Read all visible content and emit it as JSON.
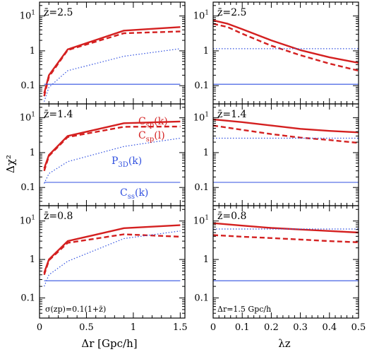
{
  "figure": {
    "ylabel": "Δχ²",
    "xlabel_left": "Δr [Gpc/h]",
    "xlabel_right": "λz",
    "note_left": "σ(zp)=0.1(1+z̄)",
    "note_right": "Δr=1.5 Gpc/h"
  },
  "labels": {
    "csp_k": "Csp(k)",
    "csp_l": "Csp(l)",
    "p3d_k": "P3D(k)",
    "css_k": "Css(k)"
  },
  "chart_data": [
    {
      "type": "line",
      "panel": "left-top",
      "annotation": "z̄=2.5",
      "xlabel": "",
      "ylabel": "Δχ²",
      "yscale": "log",
      "xlim": [
        0,
        1.55
      ],
      "ylim": [
        0.03,
        25
      ],
      "x_ticks": [
        "0",
        "0.5",
        "1",
        "1.5"
      ],
      "y_ticks": [
        "0.1",
        "1",
        "10¹"
      ],
      "series": [
        {
          "name": "Csp(k)",
          "color": "#d42020",
          "style": "solid-thick",
          "x": [
            0.05,
            0.1,
            0.3,
            0.9,
            1.5
          ],
          "values": [
            0.06,
            0.2,
            1.1,
            3.8,
            4.8
          ]
        },
        {
          "name": "Csp(l)",
          "color": "#d42020",
          "style": "dashed-thick",
          "x": [
            0.05,
            0.1,
            0.3,
            0.9,
            1.5
          ],
          "values": [
            0.05,
            0.18,
            1.05,
            3.2,
            3.6
          ]
        },
        {
          "name": "P3D(k)",
          "color": "#3050e0",
          "style": "dotted",
          "x": [
            0.05,
            0.1,
            0.3,
            0.9,
            1.5
          ],
          "values": [
            0.035,
            0.09,
            0.27,
            0.7,
            1.15
          ]
        },
        {
          "name": "Css(k)",
          "color": "#3050e0",
          "style": "solid-thin",
          "x": [
            0.05,
            0.1,
            0.3,
            0.9,
            1.5
          ],
          "values": [
            0.11,
            0.11,
            0.11,
            0.11,
            0.11
          ]
        }
      ]
    },
    {
      "type": "line",
      "panel": "right-top",
      "annotation": "z̄=2.5",
      "xlabel": "",
      "ylabel": "",
      "yscale": "log",
      "xlim": [
        0,
        0.5
      ],
      "ylim": [
        0.03,
        25
      ],
      "x_ticks": [
        "0",
        "0.1",
        "0.2",
        "0.3",
        "0.4",
        "0.5"
      ],
      "y_ticks": [
        "0.1",
        "1",
        "10¹"
      ],
      "series": [
        {
          "name": "Csp(k)",
          "color": "#d42020",
          "style": "solid-thick",
          "x": [
            0,
            0.05,
            0.1,
            0.2,
            0.3,
            0.4,
            0.5
          ],
          "values": [
            7.5,
            6.0,
            4.2,
            2.0,
            1.05,
            0.65,
            0.45
          ]
        },
        {
          "name": "Csp(l)",
          "color": "#d42020",
          "style": "dashed-thick",
          "x": [
            0,
            0.05,
            0.1,
            0.2,
            0.3,
            0.4,
            0.5
          ],
          "values": [
            6.0,
            4.8,
            3.1,
            1.4,
            0.75,
            0.43,
            0.27
          ]
        },
        {
          "name": "P3D(k)",
          "color": "#3050e0",
          "style": "dotted",
          "x": [
            0,
            0.5
          ],
          "values": [
            1.15,
            1.15
          ]
        },
        {
          "name": "Css(k)",
          "color": "#3050e0",
          "style": "solid-thin",
          "x": [
            0,
            0.5
          ],
          "values": [
            0.11,
            0.11
          ]
        }
      ]
    },
    {
      "type": "line",
      "panel": "left-middle",
      "annotation": "z̄=1.4",
      "xlabel": "",
      "ylabel": "Δχ²",
      "yscale": "log",
      "xlim": [
        0,
        1.55
      ],
      "ylim": [
        0.03,
        25
      ],
      "x_ticks": [
        "0",
        "0.5",
        "1",
        "1.5"
      ],
      "y_ticks": [
        "0.1",
        "1",
        "10¹"
      ],
      "series": [
        {
          "name": "Csp(k)",
          "color": "#d42020",
          "style": "solid-thick",
          "x": [
            0.05,
            0.1,
            0.3,
            0.9,
            1.5
          ],
          "values": [
            0.35,
            0.85,
            3.0,
            7.0,
            7.8
          ]
        },
        {
          "name": "Csp(l)",
          "color": "#d42020",
          "style": "dashed-thick",
          "x": [
            0.05,
            0.1,
            0.3,
            0.9,
            1.5
          ],
          "values": [
            0.3,
            0.8,
            2.8,
            5.5,
            5.6
          ]
        },
        {
          "name": "P3D(k)",
          "color": "#3050e0",
          "style": "dotted",
          "x": [
            0.05,
            0.1,
            0.3,
            0.9,
            1.5
          ],
          "values": [
            0.13,
            0.25,
            0.55,
            1.5,
            2.6
          ]
        },
        {
          "name": "Css(k)",
          "color": "#3050e0",
          "style": "solid-thin",
          "x": [
            0.05,
            0.1,
            0.3,
            0.9,
            1.5
          ],
          "values": [
            0.14,
            0.14,
            0.14,
            0.14,
            0.14
          ]
        }
      ]
    },
    {
      "type": "line",
      "panel": "right-middle",
      "annotation": "z̄=1.4",
      "xlabel": "",
      "ylabel": "",
      "yscale": "log",
      "xlim": [
        0,
        0.5
      ],
      "ylim": [
        0.03,
        25
      ],
      "x_ticks": [
        "0",
        "0.1",
        "0.2",
        "0.3",
        "0.4",
        "0.5"
      ],
      "y_ticks": [
        "0.1",
        "1",
        "10¹"
      ],
      "series": [
        {
          "name": "Csp(k)",
          "color": "#d42020",
          "style": "solid-thick",
          "x": [
            0,
            0.1,
            0.2,
            0.3,
            0.4,
            0.5
          ],
          "values": [
            9.0,
            7.5,
            6.0,
            4.8,
            4.2,
            3.8
          ]
        },
        {
          "name": "Csp(l)",
          "color": "#d42020",
          "style": "dashed-thick",
          "x": [
            0,
            0.1,
            0.2,
            0.3,
            0.4,
            0.5
          ],
          "values": [
            6.0,
            4.5,
            3.4,
            2.7,
            2.3,
            1.9
          ]
        },
        {
          "name": "P3D(k)",
          "color": "#3050e0",
          "style": "dotted",
          "x": [
            0,
            0.5
          ],
          "values": [
            2.6,
            2.6
          ]
        },
        {
          "name": "Css(k)",
          "color": "#3050e0",
          "style": "solid-thin",
          "x": [
            0,
            0.5
          ],
          "values": [
            0.14,
            0.14
          ]
        }
      ]
    },
    {
      "type": "line",
      "panel": "left-bottom",
      "annotation": "z̄=0.8",
      "xlabel": "Δr [Gpc/h]",
      "ylabel": "Δχ²",
      "yscale": "log",
      "xlim": [
        0,
        1.55
      ],
      "ylim": [
        0.03,
        25
      ],
      "x_ticks": [
        "0",
        "0.5",
        "1",
        "1.5"
      ],
      "y_ticks": [
        "0.1",
        "1",
        "10¹"
      ],
      "series": [
        {
          "name": "Csp(k)",
          "color": "#d42020",
          "style": "solid-thick",
          "x": [
            0.05,
            0.1,
            0.3,
            0.9,
            1.5
          ],
          "values": [
            0.45,
            1.0,
            3.0,
            6.5,
            7.8
          ]
        },
        {
          "name": "Csp(l)",
          "color": "#d42020",
          "style": "dashed-thick",
          "x": [
            0.05,
            0.1,
            0.3,
            0.9,
            1.5
          ],
          "values": [
            0.4,
            0.95,
            2.7,
            4.5,
            3.9
          ]
        },
        {
          "name": "P3D(k)",
          "color": "#3050e0",
          "style": "dotted",
          "x": [
            0.05,
            0.1,
            0.3,
            0.9,
            1.5
          ],
          "values": [
            0.2,
            0.4,
            0.9,
            3.5,
            5.5
          ]
        },
        {
          "name": "Css(k)",
          "color": "#3050e0",
          "style": "solid-thin",
          "x": [
            0.05,
            0.1,
            0.3,
            0.9,
            1.5
          ],
          "values": [
            0.28,
            0.28,
            0.28,
            0.28,
            0.28
          ]
        }
      ]
    },
    {
      "type": "line",
      "panel": "right-bottom",
      "annotation": "z̄=0.8",
      "xlabel": "λz",
      "ylabel": "",
      "yscale": "log",
      "xlim": [
        0,
        0.5
      ],
      "ylim": [
        0.03,
        25
      ],
      "x_ticks": [
        "0",
        "0.1",
        "0.2",
        "0.3",
        "0.4",
        "0.5"
      ],
      "y_ticks": [
        "0.1",
        "1",
        "10¹"
      ],
      "series": [
        {
          "name": "Csp(k)",
          "color": "#d42020",
          "style": "solid-thick",
          "x": [
            0,
            0.1,
            0.2,
            0.3,
            0.4,
            0.5
          ],
          "values": [
            8.8,
            7.6,
            6.6,
            6.0,
            5.5,
            5.0
          ]
        },
        {
          "name": "Csp(l)",
          "color": "#d42020",
          "style": "dashed-thick",
          "x": [
            0,
            0.1,
            0.2,
            0.3,
            0.4,
            0.5
          ],
          "values": [
            4.3,
            3.9,
            3.6,
            3.3,
            3.0,
            2.8
          ]
        },
        {
          "name": "P3D(k)",
          "color": "#3050e0",
          "style": "dotted",
          "x": [
            0,
            0.5
          ],
          "values": [
            6.2,
            6.2
          ]
        },
        {
          "name": "Css(k)",
          "color": "#3050e0",
          "style": "solid-thin",
          "x": [
            0,
            0.5
          ],
          "values": [
            0.28,
            0.28
          ]
        }
      ]
    }
  ]
}
